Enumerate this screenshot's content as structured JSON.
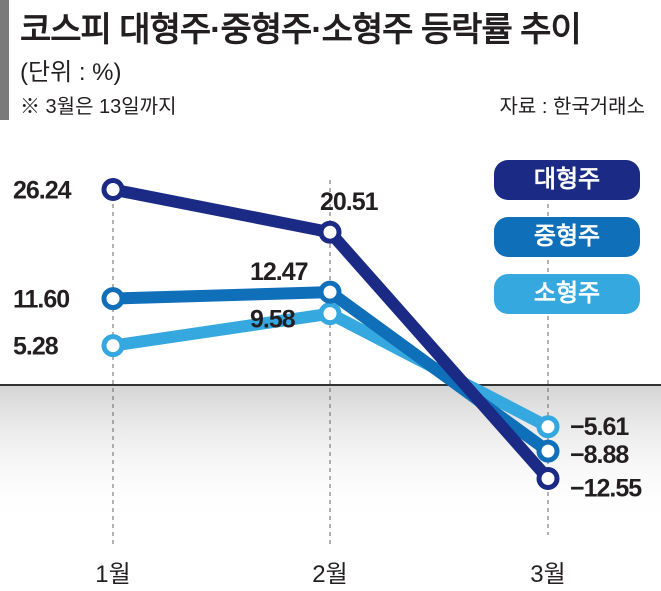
{
  "chart_data": {
    "type": "line",
    "title": "코스피 대형주·중형주·소형주 등락률 추이",
    "unit": "(단위 : %)",
    "note": "※ 3월은 13일까지",
    "source": "자료 : 한국거래소",
    "categories": [
      "1월",
      "2월",
      "3월"
    ],
    "series": [
      {
        "name": "대형주",
        "color": "#1b2a84",
        "values": [
          26.24,
          20.51,
          -12.55
        ],
        "labels": [
          "26.24",
          "20.51",
          "−12.55"
        ]
      },
      {
        "name": "중형주",
        "color": "#0f6fb8",
        "values": [
          11.6,
          12.47,
          -8.88
        ],
        "labels": [
          "11.60",
          "12.47",
          "−8.88"
        ]
      },
      {
        "name": "소형주",
        "color": "#35a8e0",
        "values": [
          5.28,
          9.58,
          -5.61
        ],
        "labels": [
          "5.28",
          "9.58",
          "−5.61"
        ]
      }
    ],
    "legend": "top-right",
    "grid": false
  }
}
